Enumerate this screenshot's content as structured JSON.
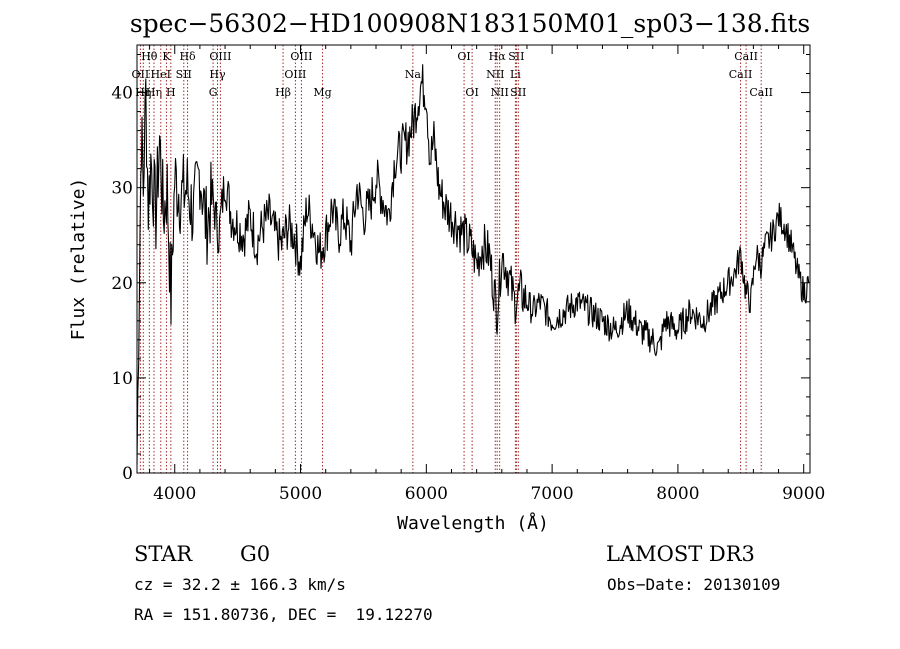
{
  "chart_data": {
    "type": "line",
    "title": "spec−56302−HD100908N183150M01_sp03−138.fits",
    "xlabel": "Wavelength (Å)",
    "ylabel": "Flux (relative)",
    "xlim": [
      3700,
      9050
    ],
    "ylim": [
      0,
      45
    ],
    "x_ticks": [
      4000,
      5000,
      6000,
      7000,
      8000,
      9000
    ],
    "y_ticks": [
      0,
      10,
      20,
      30,
      40
    ],
    "grid": false,
    "legend": "none",
    "line_color": "#000000",
    "marker_color": "#a52a2a",
    "series": [
      {
        "x": [
          3700,
          3720,
          3735,
          3750,
          3770,
          3790,
          3810,
          3830,
          3850,
          3880,
          3910,
          3940,
          3970,
          4000,
          4050,
          4100,
          4150,
          4200,
          4250,
          4300,
          4350,
          4400,
          4450,
          4500,
          4550,
          4600,
          4650,
          4700,
          4750,
          4800,
          4850,
          4900,
          4950,
          5000,
          5050,
          5100,
          5150,
          5200,
          5250,
          5300,
          5350,
          5400,
          5450,
          5500,
          5550,
          5600,
          5650,
          5700,
          5750,
          5800,
          5850,
          5900,
          5930,
          5960,
          6000,
          6030,
          6060,
          6100,
          6150,
          6200,
          6250,
          6300,
          6350,
          6400,
          6450,
          6500,
          6530,
          6563,
          6600,
          6650,
          6700,
          6750,
          6800,
          6850,
          6900,
          6950,
          7000,
          7100,
          7200,
          7300,
          7400,
          7500,
          7600,
          7700,
          7800,
          7850,
          7900,
          8000,
          8100,
          8200,
          8300,
          8400,
          8450,
          8500,
          8540,
          8580,
          8620,
          8660,
          8700,
          8750,
          8800,
          8850,
          8900,
          8950,
          9000,
          9040
        ],
        "y": [
          1,
          22,
          36,
          30,
          40,
          28,
          33,
          30,
          27,
          35,
          27,
          30,
          18,
          31,
          29,
          30,
          27,
          32,
          26,
          29,
          25,
          31,
          27,
          26,
          25,
          27,
          24,
          26,
          27,
          25,
          24,
          26,
          25,
          22,
          28,
          26,
          23,
          25,
          28,
          25,
          27,
          24,
          30,
          27,
          28,
          31,
          29,
          27,
          33,
          34,
          35,
          37,
          39,
          41,
          40,
          33,
          35,
          30,
          28,
          27,
          26,
          25,
          24,
          22,
          24,
          23,
          20,
          17,
          23,
          21,
          18,
          19,
          18,
          17,
          18,
          17,
          16,
          17,
          18,
          17,
          16,
          15,
          17,
          15,
          14,
          13,
          16,
          15,
          17,
          16,
          18,
          20,
          21,
          23,
          19,
          18,
          23,
          22,
          24,
          25,
          27,
          26,
          24,
          21,
          19,
          20
        ]
      }
    ],
    "line_markers": [
      {
        "x": 3727,
        "label": "OII",
        "row": 2
      },
      {
        "x": 3750,
        "label": "Hη",
        "row": 3
      },
      {
        "x": 3798,
        "label": "Hθ",
        "row": 1
      },
      {
        "x": 3835,
        "label": "Hη",
        "row": 3
      },
      {
        "x": 3889,
        "label": "HeI",
        "row": 2
      },
      {
        "x": 3934,
        "label": "K",
        "row": 1
      },
      {
        "x": 3969,
        "label": "H",
        "row": 3
      },
      {
        "x": 4072,
        "label": "SII",
        "row": 2
      },
      {
        "x": 4102,
        "label": "Hδ",
        "row": 1
      },
      {
        "x": 4305,
        "label": "G",
        "row": 3
      },
      {
        "x": 4340,
        "label": "Hγ",
        "row": 2
      },
      {
        "x": 4363,
        "label": "OIII",
        "row": 1
      },
      {
        "x": 4861,
        "label": "Hβ",
        "row": 3
      },
      {
        "x": 4959,
        "label": "OIII",
        "row": 2
      },
      {
        "x": 5007,
        "label": "OIII",
        "row": 1
      },
      {
        "x": 5175,
        "label": "Mg",
        "row": 3
      },
      {
        "x": 5893,
        "label": "Na",
        "row": 2
      },
      {
        "x": 6300,
        "label": "OI",
        "row": 1
      },
      {
        "x": 6364,
        "label": "OI",
        "row": 3
      },
      {
        "x": 6548,
        "label": "NII",
        "row": 2
      },
      {
        "x": 6563,
        "label": "Hα",
        "row": 1
      },
      {
        "x": 6583,
        "label": "NII",
        "row": 3
      },
      {
        "x": 6708,
        "label": "Li",
        "row": 2
      },
      {
        "x": 6716,
        "label": "SII",
        "row": 1
      },
      {
        "x": 6731,
        "label": "SII",
        "row": 3
      },
      {
        "x": 8498,
        "label": "CaII",
        "row": 2
      },
      {
        "x": 8542,
        "label": "CaII",
        "row": 1
      },
      {
        "x": 8662,
        "label": "CaII",
        "row": 3
      }
    ]
  },
  "info": {
    "object_class": "STAR",
    "subclass": "G0",
    "survey": "LAMOST DR3",
    "redshift": "cz = 32.2 ± 166.3 km/s",
    "obs_date": "Obs−Date: 20130109",
    "coords": "RA = 151.80736, DEC =  19.12270"
  }
}
